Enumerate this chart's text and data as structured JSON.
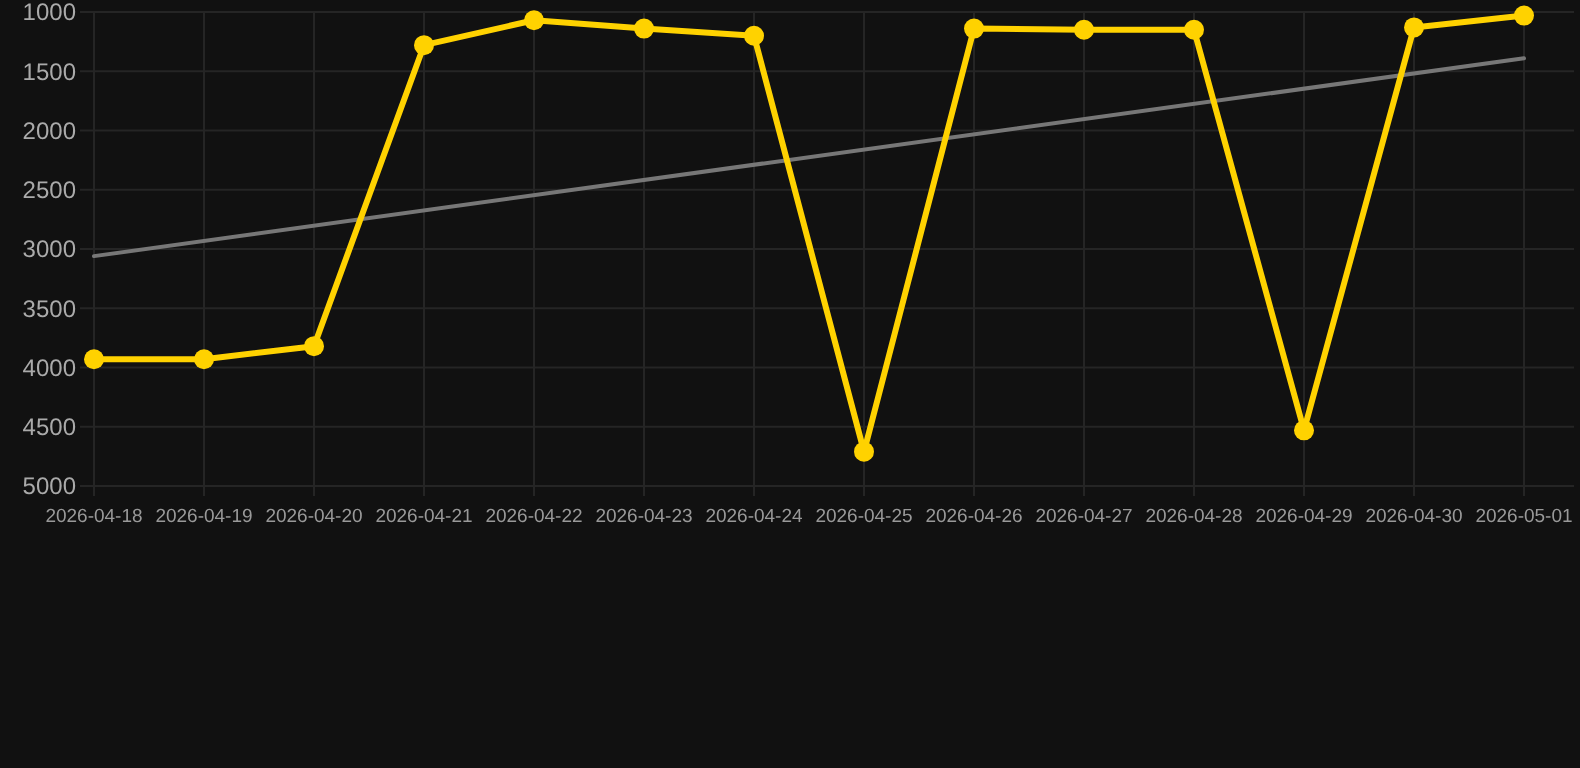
{
  "chart_data": {
    "type": "line",
    "x": [
      "2026-04-18",
      "2026-04-19",
      "2026-04-20",
      "2026-04-21",
      "2026-04-22",
      "2026-04-23",
      "2026-04-24",
      "2026-04-25",
      "2026-04-26",
      "2026-04-27",
      "2026-04-28",
      "2026-04-29",
      "2026-04-30",
      "2026-05-01"
    ],
    "series": [
      {
        "color": "#ffd200",
        "marker": "circle",
        "values": [
          3930,
          3930,
          3820,
          1280,
          1070,
          1140,
          1200,
          4710,
          1140,
          1150,
          1150,
          4530,
          1130,
          1030
        ]
      },
      {
        "color": "#777777",
        "marker": "none",
        "x": [
          "2026-04-18",
          "2026-05-01"
        ],
        "values": [
          3060,
          1390
        ]
      }
    ],
    "xlim": [
      "2026-04-18",
      "2026-05-01"
    ],
    "xticks": [
      "2026-04-18",
      "2026-04-19",
      "2026-04-20",
      "2026-04-21",
      "2026-04-22",
      "2026-04-23",
      "2026-04-24",
      "2026-04-25",
      "2026-04-26",
      "2026-04-27",
      "2026-04-28",
      "2026-04-29",
      "2026-04-30",
      "2026-05-01"
    ],
    "ylim": [
      5000,
      1000
    ],
    "yticks": [
      1000,
      1500,
      2000,
      2500,
      3000,
      3500,
      4000,
      4500,
      5000
    ],
    "grid": true
  }
}
